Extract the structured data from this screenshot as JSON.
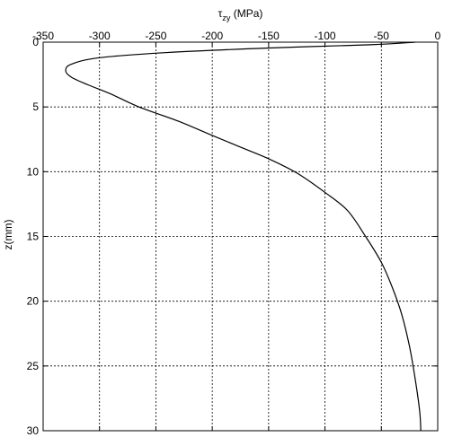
{
  "chart_data": {
    "type": "line",
    "title": "",
    "xlabel": {
      "symbol": "τ",
      "subscript": "zy",
      "unit": " (MPa)"
    },
    "ylabel": "z(mm)",
    "x_axis_position": "top",
    "y_axis_reversed": true,
    "xlim": [
      -350,
      0
    ],
    "ylim": [
      0,
      30
    ],
    "x_ticks": [
      -350,
      -300,
      -250,
      -200,
      -150,
      -100,
      -50,
      0
    ],
    "y_ticks": [
      0,
      5,
      10,
      15,
      20,
      25,
      30
    ],
    "grid": true,
    "grid_style": "dotted",
    "line_color": "#000000",
    "series": [
      {
        "points": [
          {
            "x": -20,
            "y": 0.0
          },
          {
            "x": -60,
            "y": 0.2
          },
          {
            "x": -150,
            "y": 0.45
          },
          {
            "x": -240,
            "y": 0.8
          },
          {
            "x": -300,
            "y": 1.2
          },
          {
            "x": -325,
            "y": 1.7
          },
          {
            "x": -330,
            "y": 2.2
          },
          {
            "x": -325,
            "y": 2.7
          },
          {
            "x": -310,
            "y": 3.3
          },
          {
            "x": -290,
            "y": 4.0
          },
          {
            "x": -265,
            "y": 5.0
          },
          {
            "x": -230,
            "y": 6.1
          },
          {
            "x": -200,
            "y": 7.2
          },
          {
            "x": -175,
            "y": 8.1
          },
          {
            "x": -150,
            "y": 9.0
          },
          {
            "x": -125,
            "y": 10.1
          },
          {
            "x": -100,
            "y": 11.6
          },
          {
            "x": -80,
            "y": 13.0
          },
          {
            "x": -64,
            "y": 15.0
          },
          {
            "x": -50,
            "y": 17.0
          },
          {
            "x": -40,
            "y": 19.0
          },
          {
            "x": -32,
            "y": 21.0
          },
          {
            "x": -25,
            "y": 23.5
          },
          {
            "x": -20,
            "y": 26.0
          },
          {
            "x": -16,
            "y": 28.5
          },
          {
            "x": -15,
            "y": 30.0
          }
        ]
      }
    ]
  }
}
